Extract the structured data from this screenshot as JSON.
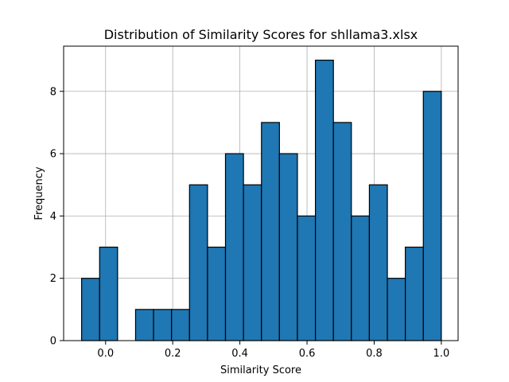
{
  "chart_data": {
    "type": "bar",
    "title": "Distribution of Similarity Scores for shllama3.xlsx",
    "xlabel": "Similarity Score",
    "ylabel": "Frequency",
    "bins": [
      {
        "x0": -0.0714,
        "x1": -0.0178,
        "count": 2
      },
      {
        "x0": -0.0178,
        "x1": 0.0357,
        "count": 3
      },
      {
        "x0": 0.0357,
        "x1": 0.0893,
        "count": 0
      },
      {
        "x0": 0.0893,
        "x1": 0.1428,
        "count": 1
      },
      {
        "x0": 0.1428,
        "x1": 0.1964,
        "count": 1
      },
      {
        "x0": 0.1964,
        "x1": 0.25,
        "count": 1
      },
      {
        "x0": 0.25,
        "x1": 0.3036,
        "count": 5
      },
      {
        "x0": 0.3036,
        "x1": 0.3571,
        "count": 3
      },
      {
        "x0": 0.3571,
        "x1": 0.4107,
        "count": 6
      },
      {
        "x0": 0.4107,
        "x1": 0.4643,
        "count": 5
      },
      {
        "x0": 0.4643,
        "x1": 0.5178,
        "count": 7
      },
      {
        "x0": 0.5178,
        "x1": 0.5714,
        "count": 6
      },
      {
        "x0": 0.5714,
        "x1": 0.625,
        "count": 4
      },
      {
        "x0": 0.625,
        "x1": 0.6786,
        "count": 9
      },
      {
        "x0": 0.6786,
        "x1": 0.7321,
        "count": 7
      },
      {
        "x0": 0.7321,
        "x1": 0.7857,
        "count": 4
      },
      {
        "x0": 0.7857,
        "x1": 0.8393,
        "count": 5
      },
      {
        "x0": 0.8393,
        "x1": 0.8928,
        "count": 2
      },
      {
        "x0": 0.8928,
        "x1": 0.9464,
        "count": 3
      },
      {
        "x0": 0.9464,
        "x1": 1.0,
        "count": 8
      }
    ],
    "xlim": [
      -0.125,
      1.05
    ],
    "ylim": [
      0,
      9.45
    ],
    "xticks": [
      0.0,
      0.2,
      0.4,
      0.6,
      0.8,
      1.0
    ],
    "xtick_labels": [
      "0.0",
      "0.2",
      "0.4",
      "0.6",
      "0.8",
      "1.0"
    ],
    "yticks": [
      0,
      2,
      4,
      6,
      8
    ],
    "ytick_labels": [
      "0",
      "2",
      "4",
      "6",
      "8"
    ],
    "grid": true,
    "colors": {
      "bar_fill": "#1f77b4",
      "bar_edge": "#000000",
      "grid": "#b0b0b0",
      "axes": "#000000"
    }
  }
}
